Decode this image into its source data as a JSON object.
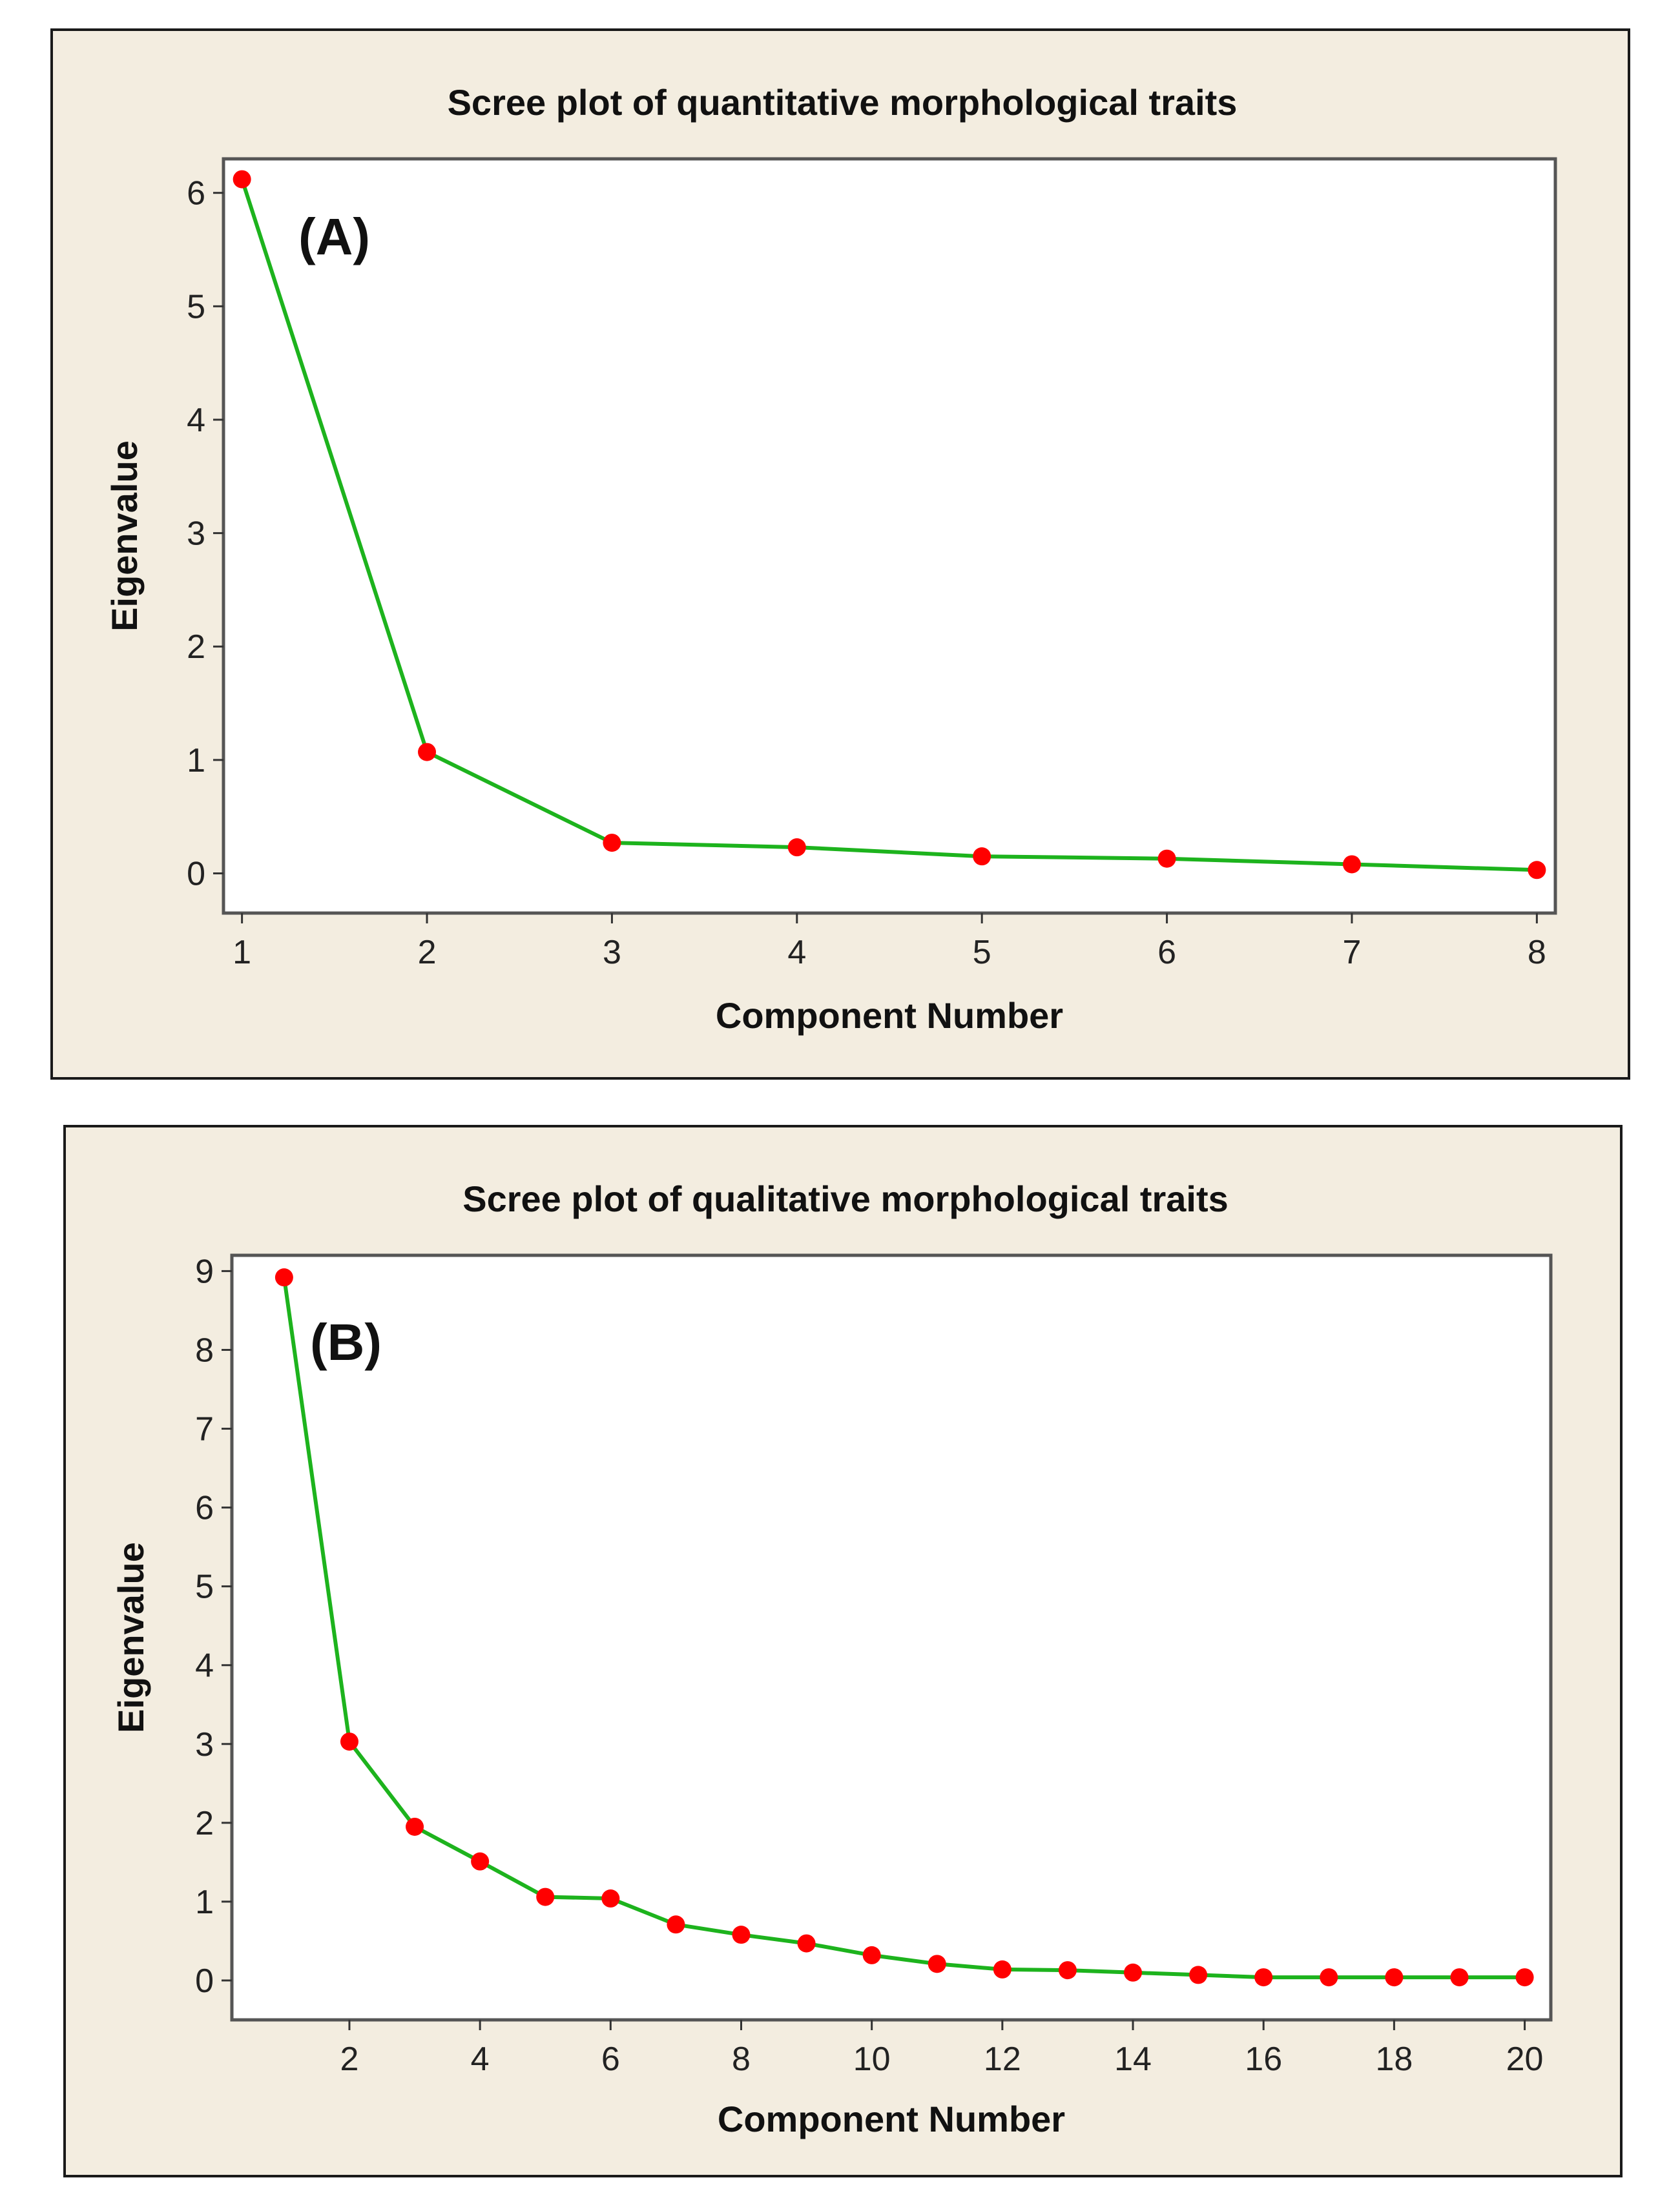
{
  "chart_data": [
    {
      "type": "line",
      "title": "Scree plot of quantitative morphological traits",
      "panel_label": "(A)",
      "xlabel": "Component Number",
      "ylabel": "Eigenvalue",
      "xlim": [
        0.9,
        8.1
      ],
      "ylim": [
        -0.35,
        6.3
      ],
      "xticks": [
        1,
        2,
        3,
        4,
        5,
        6,
        7,
        8
      ],
      "yticks": [
        0,
        1,
        2,
        3,
        4,
        5,
        6
      ],
      "series": [
        {
          "x": [
            1,
            2,
            3,
            4,
            5,
            6,
            7,
            8
          ],
          "values": [
            6.12,
            1.07,
            0.27,
            0.23,
            0.15,
            0.13,
            0.08,
            0.03
          ]
        }
      ],
      "grid": false,
      "line_color": "#1db31d",
      "marker_color": "#ff0000"
    },
    {
      "type": "line",
      "title": "Scree plot of qualitative morphological traits",
      "panel_label": "(B)",
      "xlabel": "Component Number",
      "ylabel": "Eigenvalue",
      "xlim": [
        0.2,
        20.4
      ],
      "ylim": [
        -0.5,
        9.2
      ],
      "xticks": [
        2,
        4,
        6,
        8,
        10,
        12,
        14,
        16,
        18,
        20
      ],
      "yticks": [
        0,
        1,
        2,
        3,
        4,
        5,
        6,
        7,
        8,
        9
      ],
      "series": [
        {
          "x": [
            1,
            2,
            3,
            4,
            5,
            6,
            7,
            8,
            9,
            10,
            11,
            12,
            13,
            14,
            15,
            16,
            17,
            18,
            19,
            20
          ],
          "values": [
            8.92,
            3.03,
            1.95,
            1.51,
            1.06,
            1.04,
            0.71,
            0.58,
            0.47,
            0.32,
            0.21,
            0.14,
            0.13,
            0.1,
            0.07,
            0.04,
            0.04,
            0.04,
            0.04,
            0.04
          ]
        }
      ],
      "grid": false,
      "line_color": "#1db31d",
      "marker_color": "#ff0000"
    }
  ]
}
